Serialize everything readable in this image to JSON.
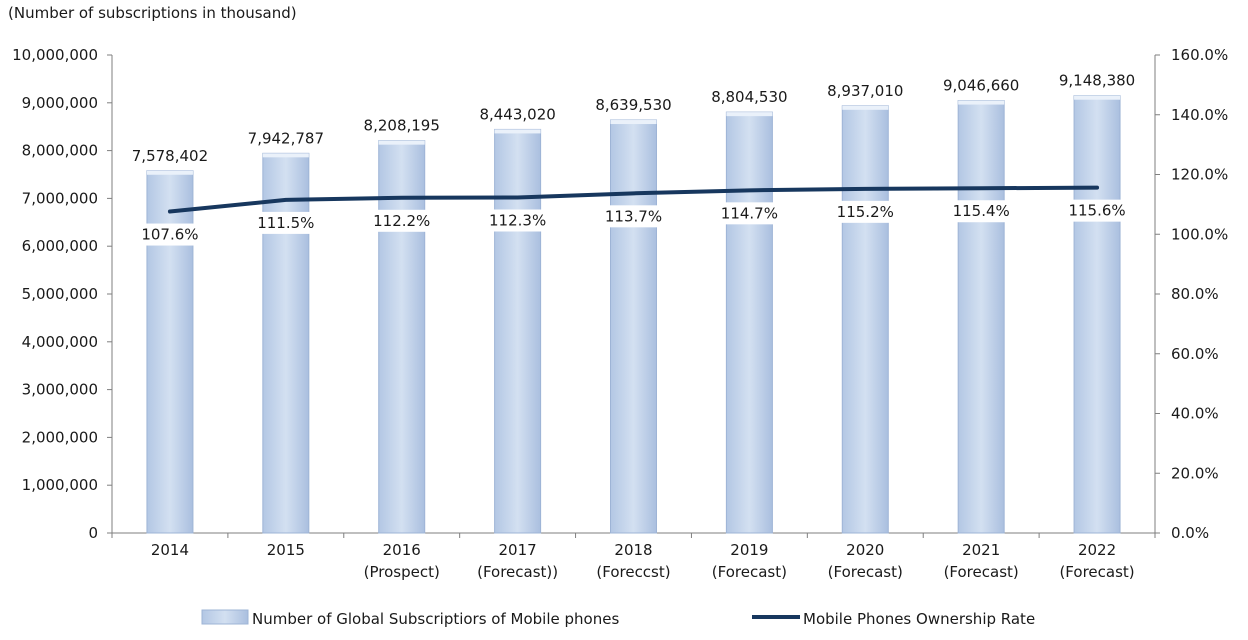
{
  "chart_data": {
    "type": "bar",
    "unit_label": "(Number of subscriptions in thousand)",
    "categories": [
      [
        "2014"
      ],
      [
        "2015"
      ],
      [
        "2016",
        "(Prospect)"
      ],
      [
        "2017",
        "(Forecast))"
      ],
      [
        "2018",
        "(Foreccst)"
      ],
      [
        "2019",
        "(Forecast)"
      ],
      [
        "2020",
        "(Forecast)"
      ],
      [
        "2021",
        "(Forecast)"
      ],
      [
        "2022",
        "(Forecast)"
      ]
    ],
    "series": [
      {
        "name": "Number of Global Subscriptiors of Mobile phones",
        "type": "bar",
        "axis": "left",
        "color": "#c5d6ec",
        "values": [
          7578402,
          7942787,
          8208195,
          8443020,
          8639530,
          8804530,
          8937010,
          9046660,
          9148380
        ],
        "labels": [
          "7,578,402",
          "7,942,787",
          "8,208,195",
          "8,443,020",
          "8,639,530",
          "8,804,530",
          "8,937,010",
          "9,046,660",
          "9,148,380"
        ]
      },
      {
        "name": "Mobile Phones Ownership Rate",
        "type": "line",
        "axis": "right",
        "color": "#17375e",
        "values": [
          107.6,
          111.5,
          112.2,
          112.3,
          113.7,
          114.7,
          115.2,
          115.4,
          115.6
        ],
        "labels": [
          "107.6%",
          "111.5%",
          "112.2%",
          "112.3%",
          "113.7%",
          "114.7%",
          "115.2%",
          "115.4%",
          "115.6%"
        ]
      }
    ],
    "y_left": {
      "range": [
        0,
        10000000
      ],
      "ticks": [
        0,
        1000000,
        2000000,
        3000000,
        4000000,
        5000000,
        6000000,
        7000000,
        8000000,
        9000000,
        10000000
      ],
      "tick_labels": [
        "0",
        "1,000,000",
        "2,000,000",
        "3,000,000",
        "4,000,000",
        "5,000,000",
        "6,000,000",
        "7,000,000",
        "8,000,000",
        "9,000,000",
        "10,000,000"
      ]
    },
    "y_right": {
      "range": [
        0,
        160
      ],
      "ticks": [
        0,
        20,
        40,
        60,
        80,
        100,
        120,
        140,
        160
      ],
      "tick_labels": [
        "0.0%",
        "20.0%",
        "40.0%",
        "60.0%",
        "80.0%",
        "100.0%",
        "120.0%",
        "140.0%",
        "160.0%"
      ]
    },
    "grid": false,
    "legend_position": "bottom"
  }
}
